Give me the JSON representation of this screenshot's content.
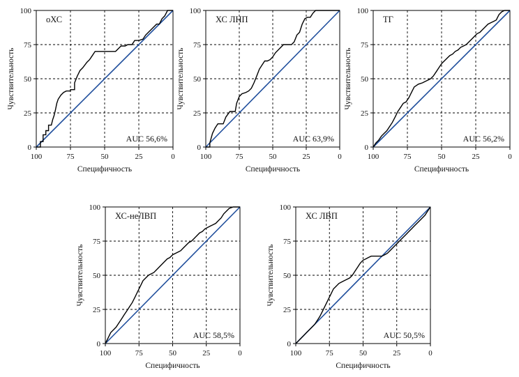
{
  "chart_data": [
    {
      "type": "line",
      "title": "оХС",
      "auc_label": "AUC 56,6%",
      "xlabel": "Специфичность",
      "ylabel": "Чувствительность",
      "xlim": [
        100,
        0
      ],
      "ylim": [
        0,
        100
      ],
      "xticks": [
        "100",
        "75",
        "50",
        "25",
        "0"
      ],
      "yticks": [
        "0",
        "25",
        "50",
        "75",
        "100"
      ],
      "grid": true,
      "series": [
        {
          "x": [
            100,
            97,
            97,
            95,
            95,
            93,
            93,
            91,
            91,
            89,
            88,
            87,
            86,
            85,
            84,
            82,
            80,
            78,
            75,
            75,
            72,
            72,
            70,
            68,
            66,
            63,
            61,
            59,
            57,
            55,
            52,
            50,
            48,
            46,
            44,
            42,
            40,
            38,
            35,
            33,
            30,
            28,
            25,
            22,
            20,
            18,
            15,
            12,
            10,
            8,
            6,
            4,
            2,
            0
          ],
          "y": [
            0,
            0,
            4,
            4,
            9,
            9,
            12,
            12,
            16,
            16,
            20,
            23,
            27,
            32,
            35,
            38,
            40,
            41,
            41,
            42,
            42,
            47,
            52,
            56,
            58,
            62,
            64,
            67,
            70,
            70,
            70,
            70,
            70,
            70,
            70,
            70,
            72,
            74,
            74,
            75,
            75,
            78,
            78,
            79,
            82,
            84,
            87,
            90,
            90,
            94,
            96,
            100,
            100,
            100
          ]
        },
        {
          "x": [
            100,
            0
          ],
          "y": [
            0,
            100
          ]
        }
      ]
    },
    {
      "type": "line",
      "title": "ХС ЛНП",
      "auc_label": "AUC 63,9%",
      "xlabel": "Специфичность",
      "ylabel": "Чувствительность",
      "xlim": [
        100,
        0
      ],
      "ylim": [
        0,
        100
      ],
      "xticks": [
        "100",
        "75",
        "50",
        "25",
        "0"
      ],
      "yticks": [
        "0",
        "25",
        "50",
        "75",
        "100"
      ],
      "grid": true,
      "series": [
        {
          "x": [
            100,
            97,
            97,
            95,
            93,
            91,
            89,
            87,
            85,
            82,
            80,
            78,
            77,
            75,
            73,
            70,
            68,
            66,
            64,
            62,
            60,
            58,
            56,
            54,
            52,
            50,
            48,
            45,
            42,
            40,
            38,
            36,
            34,
            32,
            30,
            28,
            26,
            24,
            22,
            20,
            18,
            15,
            12,
            10,
            8,
            5,
            3,
            0
          ],
          "y": [
            0,
            0,
            3,
            10,
            14,
            17,
            17,
            17,
            22,
            26,
            26,
            26,
            32,
            37,
            39,
            40,
            41,
            43,
            47,
            52,
            57,
            60,
            63,
            63,
            64,
            66,
            69,
            72,
            75,
            75,
            75,
            75,
            77,
            82,
            84,
            90,
            94,
            95,
            95,
            98,
            100,
            100,
            100,
            100,
            100,
            100,
            100,
            100
          ]
        },
        {
          "x": [
            100,
            0
          ],
          "y": [
            0,
            100
          ]
        }
      ]
    },
    {
      "type": "line",
      "title": "ТГ",
      "auc_label": "AUC 56,2%",
      "xlabel": "Специфичность",
      "ylabel": "Чувствительность",
      "xlim": [
        100,
        0
      ],
      "ylim": [
        0,
        100
      ],
      "xticks": [
        "100",
        "75",
        "50",
        "25",
        "0"
      ],
      "yticks": [
        "0",
        "25",
        "50",
        "75",
        "100"
      ],
      "grid": true,
      "series": [
        {
          "x": [
            100,
            98,
            96,
            94,
            92,
            90,
            88,
            86,
            84,
            82,
            80,
            78,
            76,
            74,
            72,
            70,
            67,
            64,
            62,
            60,
            58,
            56,
            54,
            52,
            50,
            48,
            46,
            44,
            42,
            40,
            38,
            36,
            34,
            32,
            30,
            28,
            26,
            24,
            22,
            20,
            18,
            16,
            14,
            12,
            10,
            8,
            6,
            4,
            2,
            0
          ],
          "y": [
            0,
            3,
            5,
            8,
            10,
            12,
            15,
            18,
            22,
            26,
            29,
            32,
            33,
            36,
            40,
            44,
            46,
            47,
            48,
            49,
            50,
            52,
            55,
            58,
            61,
            63,
            65,
            67,
            68,
            70,
            71,
            73,
            74,
            75,
            77,
            79,
            81,
            83,
            84,
            86,
            88,
            90,
            91,
            92,
            93,
            97,
            99,
            100,
            100,
            100
          ]
        },
        {
          "x": [
            100,
            0
          ],
          "y": [
            0,
            100
          ]
        }
      ]
    },
    {
      "type": "line",
      "title": "ХС-неЛВП",
      "auc_label": "AUC 58,5%",
      "xlabel": "Специфичность",
      "ylabel": "Чувствительность",
      "xlim": [
        100,
        0
      ],
      "ylim": [
        0,
        100
      ],
      "xticks": [
        "100",
        "75",
        "50",
        "25",
        "0"
      ],
      "yticks": [
        "0",
        "25",
        "50",
        "75",
        "100"
      ],
      "grid": true,
      "series": [
        {
          "x": [
            100,
            98,
            96,
            94,
            92,
            90,
            88,
            86,
            84,
            82,
            80,
            78,
            76,
            74,
            72,
            70,
            68,
            66,
            64,
            62,
            60,
            58,
            56,
            54,
            52,
            50,
            48,
            46,
            44,
            42,
            40,
            38,
            36,
            34,
            32,
            30,
            28,
            26,
            24,
            22,
            20,
            18,
            16,
            14,
            12,
            10,
            8,
            5,
            3,
            0
          ],
          "y": [
            0,
            4,
            8,
            10,
            12,
            15,
            18,
            21,
            24,
            27,
            30,
            34,
            38,
            42,
            46,
            48,
            50,
            51,
            52,
            54,
            56,
            58,
            60,
            62,
            63,
            65,
            66,
            67,
            68,
            70,
            72,
            74,
            75,
            77,
            79,
            81,
            82,
            84,
            85,
            86,
            87,
            88,
            90,
            92,
            95,
            97,
            99,
            100,
            100,
            100
          ]
        },
        {
          "x": [
            100,
            0
          ],
          "y": [
            0,
            100
          ]
        }
      ]
    },
    {
      "type": "line",
      "title": "ХС ЛВП",
      "auc_label": "AUC 50,5%",
      "xlabel": "Специфичность",
      "ylabel": "Чувствительность",
      "xlim": [
        100,
        0
      ],
      "ylim": [
        0,
        100
      ],
      "xticks": [
        "100",
        "75",
        "50",
        "25",
        "0"
      ],
      "yticks": [
        "0",
        "25",
        "50",
        "75",
        "100"
      ],
      "grid": true,
      "series": [
        {
          "x": [
            100,
            98,
            96,
            94,
            92,
            90,
            88,
            86,
            84,
            82,
            80,
            78,
            76,
            74,
            72,
            70,
            68,
            66,
            64,
            62,
            60,
            58,
            56,
            54,
            52,
            50,
            48,
            46,
            44,
            42,
            40,
            38,
            36,
            34,
            32,
            30,
            28,
            26,
            24,
            22,
            20,
            18,
            16,
            14,
            12,
            10,
            8,
            6,
            4,
            2,
            0
          ],
          "y": [
            0,
            2,
            4,
            6,
            8,
            10,
            12,
            14,
            17,
            20,
            24,
            28,
            32,
            36,
            40,
            42,
            44,
            45,
            46,
            47,
            48,
            50,
            53,
            56,
            59,
            61,
            62,
            63,
            64,
            64,
            64,
            64,
            64,
            65,
            66,
            68,
            70,
            72,
            74,
            76,
            78,
            80,
            82,
            84,
            86,
            88,
            90,
            92,
            94,
            97,
            100
          ]
        },
        {
          "x": [
            100,
            0
          ],
          "y": [
            0,
            100
          ]
        }
      ]
    }
  ]
}
